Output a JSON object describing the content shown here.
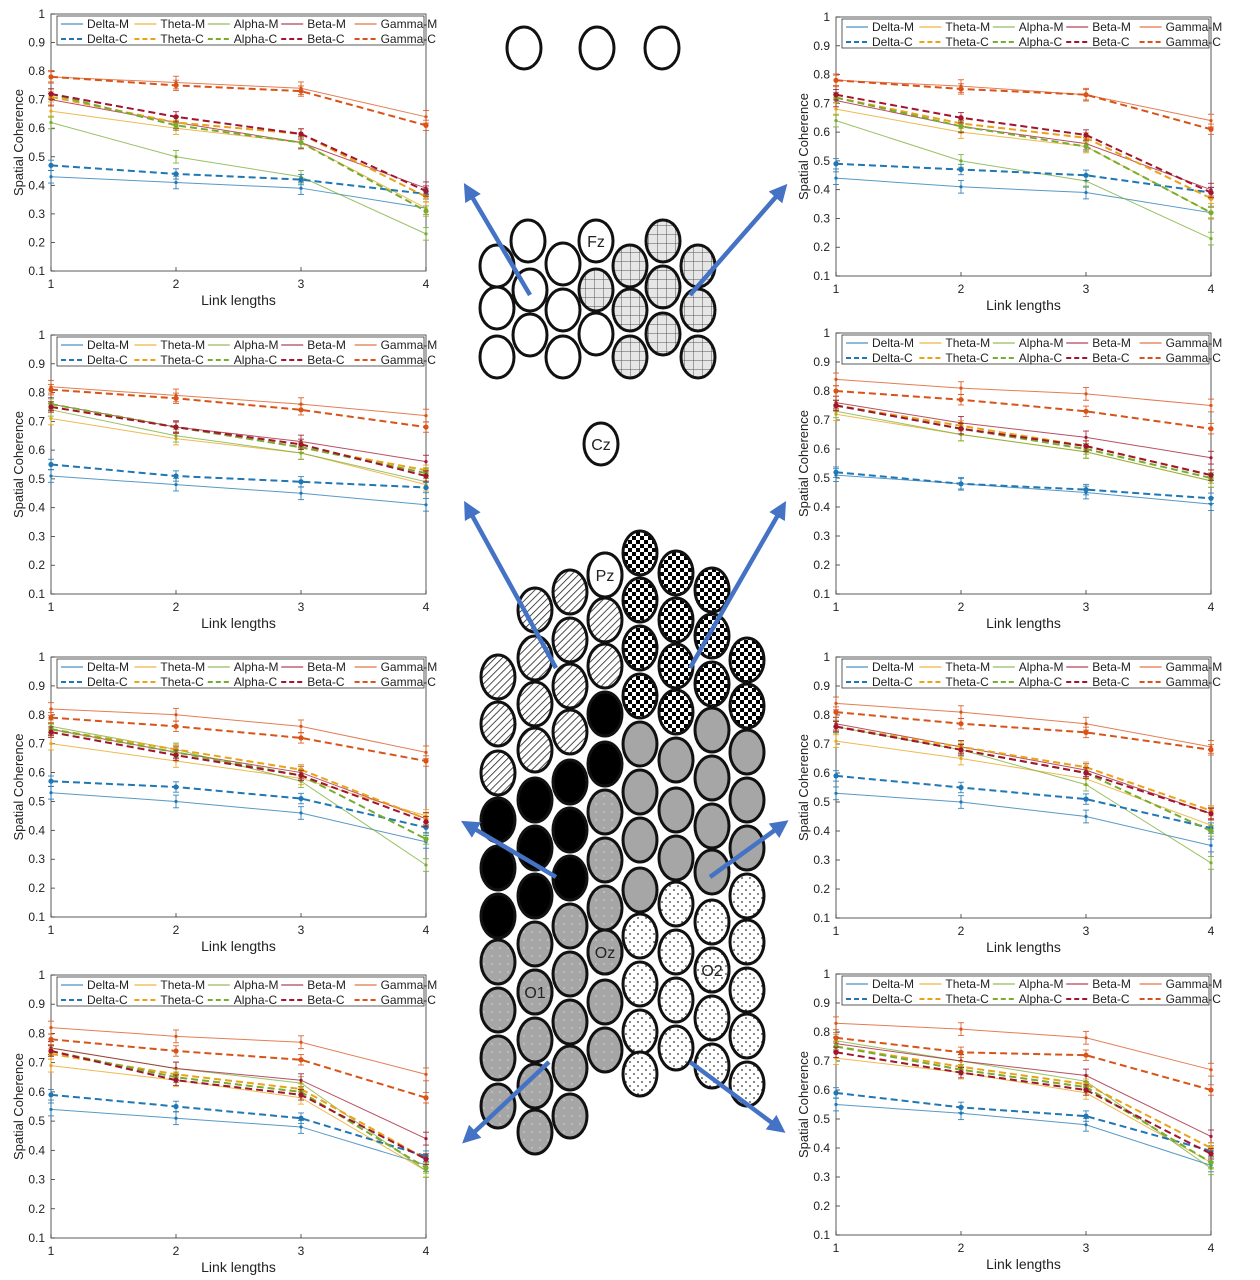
{
  "colors": {
    "delta": "#1f77b4",
    "theta": "#e8a317",
    "alpha": "#77ac30",
    "beta": "#a2142f",
    "gamma": "#d95319",
    "arrow": "#4472c4",
    "grey_electrode": "#a6a6a6"
  },
  "electrode_labels": {
    "fz": "Fz",
    "cz": "Cz",
    "pz": "Pz",
    "oz": "Oz",
    "o1": "O1",
    "o2": "O2"
  },
  "chart_common": {
    "type": "line",
    "xlabel": "Link lengths",
    "ylabel": "Spatial Coherence",
    "x": [
      1,
      2,
      3,
      4
    ],
    "x_ticks": [
      "1",
      "2",
      "3",
      "4"
    ],
    "ylim": [
      0.1,
      1
    ],
    "y_ticks": [
      "0.1",
      "0.2",
      "0.3",
      "0.4",
      "0.5",
      "0.6",
      "0.7",
      "0.8",
      "0.9",
      "1"
    ],
    "grid": false,
    "legend_placement": "top",
    "legend": [
      "Delta-M",
      "Theta-M",
      "Alpha-M",
      "Beta-M",
      "Gamma-M",
      "Delta-C",
      "Theta-C",
      "Alpha-C",
      "Beta-C",
      "Gamma-C"
    ]
  },
  "chart_data": [
    {
      "type": "line",
      "panel": "row1-left",
      "series": [
        {
          "name": "Delta-M",
          "values": [
            0.43,
            0.41,
            0.39,
            0.32
          ]
        },
        {
          "name": "Theta-M",
          "values": [
            0.66,
            0.6,
            0.55,
            0.32
          ]
        },
        {
          "name": "Alpha-M",
          "values": [
            0.62,
            0.5,
            0.43,
            0.23
          ]
        },
        {
          "name": "Beta-M",
          "values": [
            0.7,
            0.62,
            0.55,
            0.39
          ]
        },
        {
          "name": "Gamma-M",
          "values": [
            0.78,
            0.76,
            0.74,
            0.64
          ]
        },
        {
          "name": "Delta-C",
          "values": [
            0.47,
            0.44,
            0.42,
            0.37
          ]
        },
        {
          "name": "Theta-C",
          "values": [
            0.71,
            0.62,
            0.58,
            0.36
          ]
        },
        {
          "name": "Alpha-C",
          "values": [
            0.72,
            0.61,
            0.55,
            0.31
          ]
        },
        {
          "name": "Beta-C",
          "values": [
            0.72,
            0.64,
            0.58,
            0.38
          ]
        },
        {
          "name": "Gamma-C",
          "values": [
            0.78,
            0.75,
            0.73,
            0.61
          ]
        }
      ]
    },
    {
      "type": "line",
      "panel": "row1-right",
      "series": [
        {
          "name": "Delta-M",
          "values": [
            0.44,
            0.41,
            0.39,
            0.32
          ]
        },
        {
          "name": "Theta-M",
          "values": [
            0.68,
            0.6,
            0.55,
            0.32
          ]
        },
        {
          "name": "Alpha-M",
          "values": [
            0.64,
            0.5,
            0.43,
            0.23
          ]
        },
        {
          "name": "Beta-M",
          "values": [
            0.71,
            0.62,
            0.56,
            0.4
          ]
        },
        {
          "name": "Gamma-M",
          "values": [
            0.78,
            0.76,
            0.73,
            0.64
          ]
        },
        {
          "name": "Delta-C",
          "values": [
            0.49,
            0.47,
            0.45,
            0.39
          ]
        },
        {
          "name": "Theta-C",
          "values": [
            0.72,
            0.63,
            0.58,
            0.37
          ]
        },
        {
          "name": "Alpha-C",
          "values": [
            0.72,
            0.62,
            0.55,
            0.32
          ]
        },
        {
          "name": "Beta-C",
          "values": [
            0.73,
            0.65,
            0.59,
            0.39
          ]
        },
        {
          "name": "Gamma-C",
          "values": [
            0.78,
            0.75,
            0.73,
            0.61
          ]
        }
      ]
    },
    {
      "type": "line",
      "panel": "row2-left",
      "series": [
        {
          "name": "Delta-M",
          "values": [
            0.51,
            0.48,
            0.45,
            0.41
          ]
        },
        {
          "name": "Theta-M",
          "values": [
            0.71,
            0.64,
            0.59,
            0.48
          ]
        },
        {
          "name": "Alpha-M",
          "values": [
            0.74,
            0.65,
            0.59,
            0.49
          ]
        },
        {
          "name": "Beta-M",
          "values": [
            0.76,
            0.68,
            0.63,
            0.56
          ]
        },
        {
          "name": "Gamma-M",
          "values": [
            0.82,
            0.79,
            0.76,
            0.72
          ]
        },
        {
          "name": "Delta-C",
          "values": [
            0.55,
            0.51,
            0.49,
            0.47
          ]
        },
        {
          "name": "Theta-C",
          "values": [
            0.75,
            0.68,
            0.61,
            0.53
          ]
        },
        {
          "name": "Alpha-C",
          "values": [
            0.76,
            0.68,
            0.61,
            0.52
          ]
        },
        {
          "name": "Beta-C",
          "values": [
            0.75,
            0.68,
            0.62,
            0.51
          ]
        },
        {
          "name": "Gamma-C",
          "values": [
            0.81,
            0.78,
            0.74,
            0.68
          ]
        }
      ]
    },
    {
      "type": "line",
      "panel": "row2-right",
      "series": [
        {
          "name": "Delta-M",
          "values": [
            0.51,
            0.48,
            0.45,
            0.41
          ]
        },
        {
          "name": "Theta-M",
          "values": [
            0.72,
            0.65,
            0.59,
            0.49
          ]
        },
        {
          "name": "Alpha-M",
          "values": [
            0.73,
            0.65,
            0.59,
            0.49
          ]
        },
        {
          "name": "Beta-M",
          "values": [
            0.76,
            0.69,
            0.64,
            0.57
          ]
        },
        {
          "name": "Gamma-M",
          "values": [
            0.84,
            0.81,
            0.79,
            0.75
          ]
        },
        {
          "name": "Delta-C",
          "values": [
            0.52,
            0.48,
            0.46,
            0.43
          ]
        },
        {
          "name": "Theta-C",
          "values": [
            0.75,
            0.68,
            0.61,
            0.51
          ]
        },
        {
          "name": "Alpha-C",
          "values": [
            0.75,
            0.67,
            0.6,
            0.5
          ]
        },
        {
          "name": "Beta-C",
          "values": [
            0.75,
            0.67,
            0.61,
            0.51
          ]
        },
        {
          "name": "Gamma-C",
          "values": [
            0.8,
            0.77,
            0.73,
            0.67
          ]
        }
      ]
    },
    {
      "type": "line",
      "panel": "row3-left",
      "series": [
        {
          "name": "Delta-M",
          "values": [
            0.53,
            0.5,
            0.46,
            0.36
          ]
        },
        {
          "name": "Theta-M",
          "values": [
            0.7,
            0.64,
            0.58,
            0.45
          ]
        },
        {
          "name": "Alpha-M",
          "values": [
            0.76,
            0.68,
            0.57,
            0.28
          ]
        },
        {
          "name": "Beta-M",
          "values": [
            0.75,
            0.67,
            0.6,
            0.44
          ]
        },
        {
          "name": "Gamma-M",
          "values": [
            0.82,
            0.8,
            0.76,
            0.67
          ]
        },
        {
          "name": "Delta-C",
          "values": [
            0.57,
            0.55,
            0.51,
            0.41
          ]
        },
        {
          "name": "Theta-C",
          "values": [
            0.75,
            0.68,
            0.61,
            0.44
          ]
        },
        {
          "name": "Alpha-C",
          "values": [
            0.75,
            0.67,
            0.59,
            0.37
          ]
        },
        {
          "name": "Beta-C",
          "values": [
            0.74,
            0.66,
            0.59,
            0.43
          ]
        },
        {
          "name": "Gamma-C",
          "values": [
            0.79,
            0.76,
            0.72,
            0.64
          ]
        }
      ]
    },
    {
      "type": "line",
      "panel": "row3-right",
      "series": [
        {
          "name": "Delta-M",
          "values": [
            0.53,
            0.5,
            0.45,
            0.35
          ]
        },
        {
          "name": "Theta-M",
          "values": [
            0.71,
            0.65,
            0.58,
            0.42
          ]
        },
        {
          "name": "Alpha-M",
          "values": [
            0.76,
            0.68,
            0.56,
            0.29
          ]
        },
        {
          "name": "Beta-M",
          "values": [
            0.77,
            0.69,
            0.61,
            0.46
          ]
        },
        {
          "name": "Gamma-M",
          "values": [
            0.84,
            0.81,
            0.77,
            0.69
          ]
        },
        {
          "name": "Delta-C",
          "values": [
            0.59,
            0.55,
            0.51,
            0.41
          ]
        },
        {
          "name": "Theta-C",
          "values": [
            0.76,
            0.69,
            0.62,
            0.47
          ]
        },
        {
          "name": "Alpha-C",
          "values": [
            0.76,
            0.68,
            0.6,
            0.4
          ]
        },
        {
          "name": "Beta-C",
          "values": [
            0.76,
            0.68,
            0.6,
            0.46
          ]
        },
        {
          "name": "Gamma-C",
          "values": [
            0.81,
            0.77,
            0.74,
            0.68
          ]
        }
      ]
    },
    {
      "type": "line",
      "panel": "row4-left",
      "series": [
        {
          "name": "Delta-M",
          "values": [
            0.54,
            0.51,
            0.48,
            0.35
          ]
        },
        {
          "name": "Theta-M",
          "values": [
            0.69,
            0.64,
            0.58,
            0.33
          ]
        },
        {
          "name": "Alpha-M",
          "values": [
            0.75,
            0.68,
            0.63,
            0.33
          ]
        },
        {
          "name": "Beta-M",
          "values": [
            0.75,
            0.68,
            0.64,
            0.44
          ]
        },
        {
          "name": "Gamma-M",
          "values": [
            0.82,
            0.79,
            0.77,
            0.66
          ]
        },
        {
          "name": "Delta-C",
          "values": [
            0.59,
            0.55,
            0.51,
            0.38
          ]
        },
        {
          "name": "Theta-C",
          "values": [
            0.73,
            0.66,
            0.61,
            0.37
          ]
        },
        {
          "name": "Alpha-C",
          "values": [
            0.74,
            0.65,
            0.6,
            0.34
          ]
        },
        {
          "name": "Beta-C",
          "values": [
            0.74,
            0.64,
            0.59,
            0.37
          ]
        },
        {
          "name": "Gamma-C",
          "values": [
            0.78,
            0.74,
            0.71,
            0.58
          ]
        }
      ]
    },
    {
      "type": "line",
      "panel": "row4-right",
      "series": [
        {
          "name": "Delta-M",
          "values": [
            0.55,
            0.52,
            0.48,
            0.34
          ]
        },
        {
          "name": "Theta-M",
          "values": [
            0.71,
            0.66,
            0.59,
            0.35
          ]
        },
        {
          "name": "Alpha-M",
          "values": [
            0.77,
            0.7,
            0.63,
            0.33
          ]
        },
        {
          "name": "Beta-M",
          "values": [
            0.76,
            0.7,
            0.65,
            0.44
          ]
        },
        {
          "name": "Gamma-M",
          "values": [
            0.83,
            0.81,
            0.78,
            0.67
          ]
        },
        {
          "name": "Delta-C",
          "values": [
            0.59,
            0.54,
            0.51,
            0.39
          ]
        },
        {
          "name": "Theta-C",
          "values": [
            0.75,
            0.68,
            0.62,
            0.4
          ]
        },
        {
          "name": "Alpha-C",
          "values": [
            0.75,
            0.67,
            0.61,
            0.35
          ]
        },
        {
          "name": "Beta-C",
          "values": [
            0.73,
            0.66,
            0.6,
            0.38
          ]
        },
        {
          "name": "Gamma-C",
          "values": [
            0.78,
            0.73,
            0.72,
            0.6
          ]
        }
      ]
    }
  ]
}
